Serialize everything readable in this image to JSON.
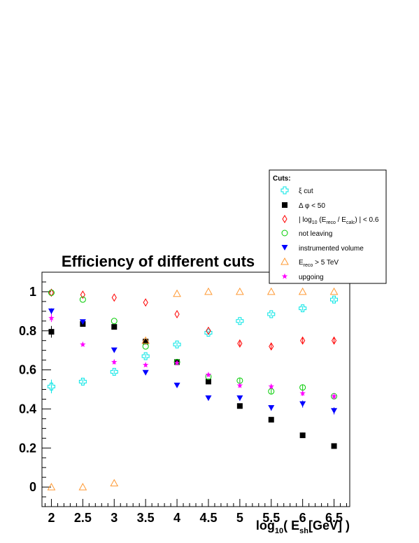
{
  "chart_data": {
    "type": "scatter",
    "title": "Efficiency of different cuts",
    "xlabel": "log10(Esh[GeV])",
    "ylabel": "",
    "xlim": [
      1.85,
      6.75
    ],
    "ylim": [
      -0.1,
      1.1
    ],
    "x_ticks": [
      2,
      2.5,
      3,
      3.5,
      4,
      4.5,
      5,
      5.5,
      6,
      6.5
    ],
    "x_tick_labels": [
      "2",
      "2.5",
      "3",
      "3.5",
      "4",
      "4.5",
      "5",
      "5.5",
      "6",
      "6.5"
    ],
    "y_ticks": [
      0,
      0.2,
      0.4,
      0.6,
      0.8,
      1
    ],
    "y_tick_labels": [
      "0",
      "0.2",
      "0.4",
      "0.6",
      "0.8",
      "1"
    ],
    "grid": false,
    "legend_position": "top-right",
    "legend_title": "Cuts:",
    "series": [
      {
        "name": "ξ cut",
        "marker": "open-cross",
        "color": "#00e5e5",
        "x": [
          2,
          2.5,
          3,
          3.5,
          4,
          4.5,
          5,
          5.5,
          6,
          6.5
        ],
        "y": [
          0.515,
          0.54,
          0.59,
          0.67,
          0.73,
          0.79,
          0.85,
          0.885,
          0.915,
          0.96
        ],
        "err": [
          0.035,
          0.012,
          0.012,
          0.012,
          0.01,
          0.01,
          0.01,
          0.01,
          0.012,
          0.012
        ]
      },
      {
        "name": "Δ φ < 50",
        "marker": "filled-square",
        "color": "#000000",
        "x": [
          2,
          2.5,
          3,
          3.5,
          4,
          4.5,
          5,
          5.5,
          6,
          6.5
        ],
        "y": [
          0.795,
          0.835,
          0.82,
          0.745,
          0.64,
          0.54,
          0.415,
          0.345,
          0.265,
          0.21
        ],
        "err": [
          0.03,
          0.012,
          0.01,
          0.01,
          0.01,
          0.01,
          0.012,
          0.012,
          0.014,
          0.014
        ]
      },
      {
        "name": "| log10 (Ereco / Ecalc) | < 0.6",
        "marker": "open-diamond",
        "color": "#ff0000",
        "x": [
          2,
          2.5,
          3,
          3.5,
          4,
          4.5,
          5,
          5.5,
          6,
          6.5
        ],
        "y": [
          0.995,
          0.985,
          0.97,
          0.945,
          0.885,
          0.8,
          0.735,
          0.72,
          0.75,
          0.75
        ],
        "err": [
          0,
          0,
          0,
          0,
          0,
          0,
          0.012,
          0.014,
          0.015,
          0.016
        ]
      },
      {
        "name": "not leaving",
        "marker": "open-circle",
        "color": "#00cc00",
        "x": [
          2,
          2.5,
          3,
          3.5,
          4,
          4.5,
          5,
          5.5,
          6,
          6.5
        ],
        "y": [
          0.995,
          0.96,
          0.85,
          0.72,
          0.64,
          0.565,
          0.545,
          0.49,
          0.51,
          0.465
        ],
        "err": [
          0,
          0,
          0,
          0,
          0,
          0,
          0.012,
          0.012,
          0.015,
          0.016
        ]
      },
      {
        "name": "instrumented volume",
        "marker": "filled-triangle-down",
        "color": "#0000ff",
        "x": [
          2,
          2.5,
          3,
          3.5,
          4,
          4.5,
          5,
          5.5,
          6,
          6.5
        ],
        "y": [
          0.9,
          0.845,
          0.7,
          0.585,
          0.52,
          0.455,
          0.455,
          0.405,
          0.425,
          0.39
        ],
        "err": [
          0.015,
          0,
          0,
          0,
          0,
          0,
          0.012,
          0.014,
          0.018,
          0.018
        ]
      },
      {
        "name": "Ereco > 5 TeV",
        "marker": "open-triangle-up",
        "color": "#ff9933",
        "x": [
          2,
          2.5,
          3,
          3.5,
          4,
          4.5,
          5,
          5.5,
          6,
          6.5
        ],
        "y": [
          0.0,
          0.0,
          0.02,
          0.75,
          0.99,
          1.0,
          1.0,
          1.0,
          1.0,
          1.0
        ],
        "err": [
          0,
          0,
          0,
          0,
          0,
          0,
          0,
          0,
          0,
          0
        ]
      },
      {
        "name": "upgoing",
        "marker": "star",
        "color": "#ff00ff",
        "x": [
          2,
          2.5,
          3,
          3.5,
          4,
          4.5,
          5,
          5.5,
          6,
          6.5
        ],
        "y": [
          0.865,
          0.73,
          0.64,
          0.625,
          0.635,
          0.575,
          0.52,
          0.515,
          0.48,
          0.465
        ],
        "err": [
          0.02,
          0.01,
          0.012,
          0.01,
          0.01,
          0.01,
          0.012,
          0.012,
          0.014,
          0.016
        ]
      }
    ]
  }
}
